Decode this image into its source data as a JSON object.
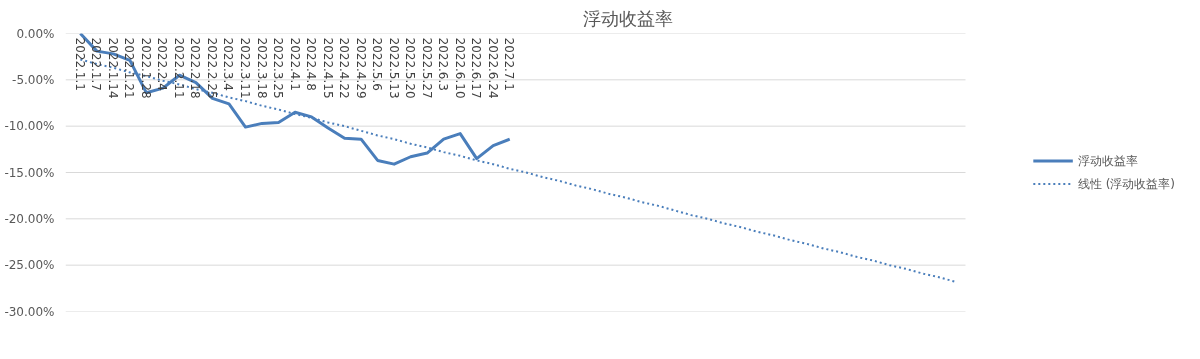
{
  "chart_data": {
    "type": "line",
    "title": "浮动收益率",
    "categories": [
      "2022.1.1",
      "2022.1.7",
      "2022.1.14",
      "2022.1.21",
      "2022.1.28",
      "2022.2.4",
      "2022.2.11",
      "2022.2.18",
      "2022.2.25",
      "2022.3.4",
      "2022.3.11",
      "2022.3.18",
      "2022.3.25",
      "2022.4.1",
      "2022.4.8",
      "2022.4.15",
      "2022.4.22",
      "2022.4.29",
      "2022.5.6",
      "2022.5.13",
      "2022.5.20",
      "2022.5.27",
      "2022.6.3",
      "2022.6.10",
      "2022.6.17",
      "2022.6.24",
      "2022.7.1",
      null,
      null,
      null,
      null,
      null,
      null,
      null,
      null,
      null,
      null,
      null,
      null,
      null,
      null,
      null,
      null,
      null,
      null,
      null,
      null,
      null,
      null,
      null,
      null,
      null,
      null,
      null
    ],
    "series": [
      {
        "name": "浮动收益率",
        "color": "#4a7ebb",
        "line_style": "solid",
        "values": [
          0,
          -1.9,
          -2.2,
          -2.9,
          -6.4,
          -5.9,
          -4.5,
          -5.3,
          -7.0,
          -7.6,
          -10.1,
          -9.7,
          -9.6,
          -8.5,
          -9.0,
          -10.2,
          -11.3,
          -11.4,
          -13.7,
          -14.1,
          -13.3,
          -12.9,
          -11.4,
          -10.8,
          -13.5,
          -12.1,
          -11.4,
          null,
          null,
          null,
          null,
          null,
          null,
          null,
          null,
          null,
          null,
          null,
          null,
          null,
          null,
          null,
          null,
          null,
          null,
          null,
          null,
          null,
          null,
          null,
          null,
          null,
          null,
          null
        ]
      },
      {
        "name": "线性 (浮动收益率)",
        "color": "#4a7ebb",
        "line_style": "dotted",
        "values": [
          -2.8,
          -3.3,
          -3.7,
          -4.2,
          -4.6,
          -5.1,
          -5.5,
          -6.0,
          -6.4,
          -6.9,
          -7.3,
          -7.8,
          -8.2,
          -8.7,
          -9.1,
          -9.6,
          -10.0,
          -10.5,
          -11.0,
          -11.4,
          -11.9,
          -12.3,
          -12.8,
          -13.2,
          -13.7,
          -14.1,
          -14.6,
          -15.0,
          -15.5,
          -15.9,
          -16.4,
          -16.8,
          -17.3,
          -17.7,
          -18.2,
          -18.6,
          -19.1,
          -19.6,
          -20.0,
          -20.5,
          -20.9,
          -21.4,
          -21.8,
          -22.3,
          -22.7,
          -23.2,
          -23.6,
          -24.1,
          -24.5,
          -25.0,
          -25.4,
          -25.9,
          -26.3,
          -26.8
        ]
      }
    ],
    "ylim": [
      -30,
      0
    ],
    "yticks": [
      {
        "value": 0,
        "label": "0.00%"
      },
      {
        "value": -5,
        "label": "-5.00%"
      },
      {
        "value": -10,
        "label": "-10.00%"
      },
      {
        "value": -15,
        "label": "-15.00%"
      },
      {
        "value": -20,
        "label": "-20.00%"
      },
      {
        "value": -25,
        "label": "-25.00%"
      },
      {
        "value": -30,
        "label": "-30.00%"
      }
    ],
    "grid": "y",
    "legend": "right"
  }
}
